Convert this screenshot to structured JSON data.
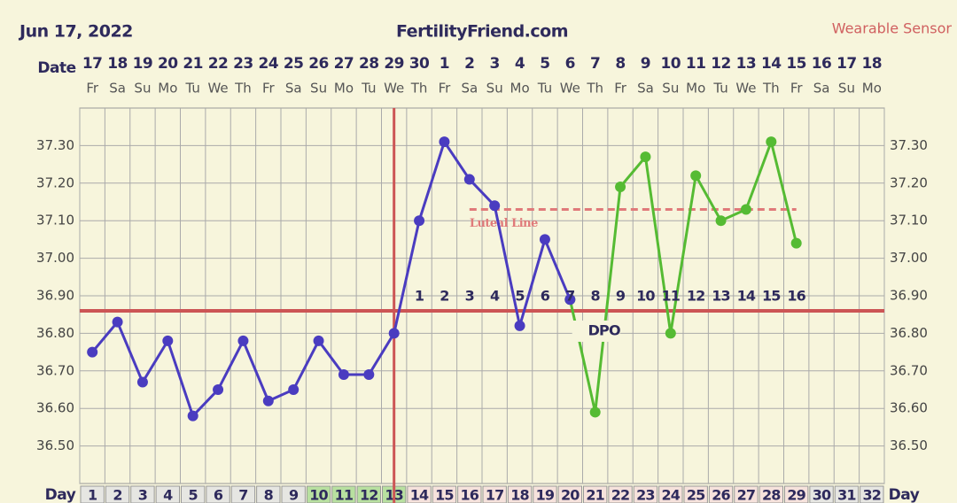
{
  "chart_data": {
    "type": "line",
    "title": "FertilityFriend.com",
    "date": "Jun 17, 2022",
    "source": "Wearable Sensor",
    "row_labels": {
      "date": "Date",
      "day": "Day",
      "dpo": "DPO"
    },
    "categories": [
      "1",
      "2",
      "3",
      "4",
      "5",
      "6",
      "7",
      "8",
      "9",
      "10",
      "11",
      "12",
      "13",
      "14",
      "15",
      "16",
      "17",
      "18",
      "19",
      "20",
      "21",
      "22",
      "23",
      "24",
      "25",
      "26",
      "27",
      "28",
      "29",
      "30",
      "31",
      "32"
    ],
    "dates": [
      "17",
      "18",
      "19",
      "20",
      "21",
      "22",
      "23",
      "24",
      "25",
      "26",
      "27",
      "28",
      "29",
      "30",
      "1",
      "2",
      "3",
      "4",
      "5",
      "6",
      "7",
      "8",
      "9",
      "10",
      "11",
      "12",
      "13",
      "14",
      "15",
      "16",
      "17",
      "18"
    ],
    "weekdays": [
      "Fr",
      "Sa",
      "Su",
      "Mo",
      "Tu",
      "We",
      "Th",
      "Fr",
      "Sa",
      "Su",
      "Mo",
      "Tu",
      "We",
      "Th",
      "Fr",
      "Sa",
      "Su",
      "Mo",
      "Tu",
      "We",
      "Th",
      "Fr",
      "Sa",
      "Su",
      "Mo",
      "Tu",
      "We",
      "Th",
      "Fr",
      "Sa",
      "Su",
      "Mo"
    ],
    "dpo": [
      null,
      null,
      null,
      null,
      null,
      null,
      null,
      null,
      null,
      null,
      null,
      null,
      null,
      "1",
      "2",
      "3",
      "4",
      "5",
      "6",
      "7",
      "8",
      "9",
      "10",
      "11",
      "12",
      "13",
      "14",
      "15",
      "16",
      null,
      null,
      null
    ],
    "day_colors": [
      "#e6e6e2",
      "#e6e6e2",
      "#e6e6e2",
      "#e6e6e2",
      "#e6e6e2",
      "#e6e6e2",
      "#e6e6e2",
      "#e6e6e2",
      "#e6e6e2",
      "#b8e0a0",
      "#b8e0a0",
      "#b8e0a0",
      "#b8e0a0",
      "#f6e2dc",
      "#f6e2dc",
      "#f6e2dc",
      "#f6e2dc",
      "#f6e2dc",
      "#f6e2dc",
      "#f6e2dc",
      "#f6e2dc",
      "#f6e2dc",
      "#f6e2dc",
      "#f6e2dc",
      "#f6e2dc",
      "#f6e2dc",
      "#f6e2dc",
      "#f6e2dc",
      "#f6e2dc",
      "#e6e6e2",
      "#e6e6e2",
      "#e6e6e2"
    ],
    "series": [
      {
        "color": "#4a3cc0",
        "values": [
          36.75,
          36.83,
          36.67,
          36.78,
          36.58,
          36.65,
          36.78,
          36.62,
          36.65,
          36.78,
          36.69,
          36.69,
          36.8,
          37.1,
          37.31,
          37.21,
          37.14,
          36.82,
          37.05,
          36.89,
          null,
          null,
          null,
          null,
          null,
          null,
          null,
          null,
          null,
          null,
          null,
          null
        ]
      },
      {
        "color": "#55bb33",
        "values": [
          null,
          null,
          null,
          null,
          null,
          null,
          null,
          null,
          null,
          null,
          null,
          null,
          null,
          null,
          null,
          null,
          null,
          null,
          null,
          36.89,
          36.59,
          37.19,
          37.27,
          36.8,
          37.22,
          37.1,
          37.13,
          37.31,
          37.04,
          null,
          null,
          null
        ]
      }
    ],
    "coverline": 36.86,
    "ovulation_day": "13",
    "luteal_line": {
      "label": "Luteal Line",
      "value": 37.13,
      "from_day": "16",
      "to_day": "29"
    },
    "ylim": [
      36.4,
      37.4
    ],
    "yticks": [
      {
        "value": 36.5,
        "label": "36.50"
      },
      {
        "value": 36.6,
        "label": "36.60"
      },
      {
        "value": 36.7,
        "label": "36.70"
      },
      {
        "value": 36.8,
        "label": "36.80"
      },
      {
        "value": 36.9,
        "label": "36.90"
      },
      {
        "value": 37.0,
        "label": "37.00"
      },
      {
        "value": 37.1,
        "label": "37.10"
      },
      {
        "value": 37.2,
        "label": "37.20"
      },
      {
        "value": 37.3,
        "label": "37.30"
      }
    ],
    "grid": true
  }
}
